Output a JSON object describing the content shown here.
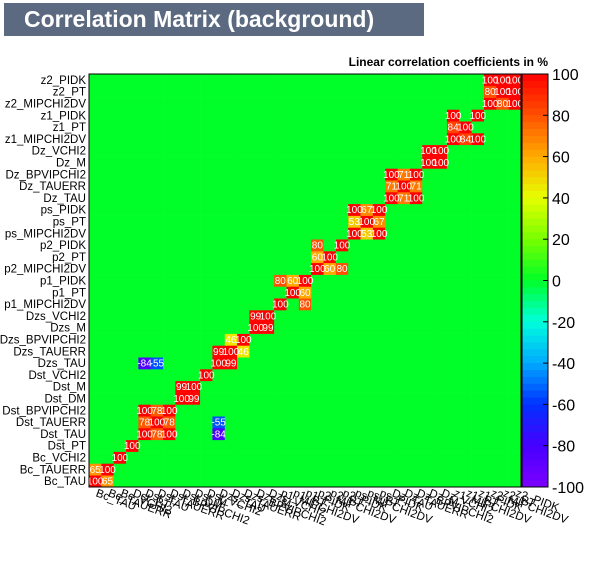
{
  "chart_data": {
    "type": "heatmap",
    "title": "Correlation Matrix (background)",
    "subtitle": "Linear correlation coefficients in %",
    "variables": [
      "Bc_TAU",
      "Bc_TAUERR",
      "Bc_VCHI2",
      "Dst_PT",
      "Dst_TAU",
      "Dst_TAUERR",
      "Dst_BPVIPCHI2",
      "Dst_DM",
      "Dst_M",
      "Dst_VCHI2",
      "Dzs_TAU",
      "Dzs_TAUERR",
      "Dzs_BPVIPCHI2",
      "Dzs_M",
      "Dzs_VCHI2",
      "p1_MIPCHI2DV",
      "p1_PT",
      "p1_PIDK",
      "p2_MIPCHI2DV",
      "p2_PT",
      "p2_PIDK",
      "ps_MIPCHI2DV",
      "ps_PT",
      "ps_PIDK",
      "Dz_TAU",
      "Dz_TAUERR",
      "Dz_BPVIPCHI2",
      "Dz_M",
      "Dz_VCHI2",
      "z1_MIPCHI2DV",
      "z1_PT",
      "z1_PIDK",
      "z2_MIPCHI2DV",
      "z2_PT",
      "z2_PIDK"
    ],
    "y_tick_labels": [
      "Bc_TAU",
      "Bc_TAUERR",
      "Bc_VCHI2",
      "Dst_PT",
      "Dst_TAU",
      "Dst_TAUERR",
      "Dst_BPVIPCHI2",
      "Dst_DM",
      "Dst_M",
      "Dst_VCHI2",
      "Dzs_TAU",
      "Dzs_TAUERR",
      "Dzs_BPVIPCHI2",
      "Dzs_M",
      "Dzs_VCHI2",
      "p1_MIPCHI2DV",
      "p1_PT",
      "p1_PIDK",
      "p2_MIPCHI2DV",
      "p2_PT",
      "p2_PIDK",
      "ps_MIPCHI2DV",
      "ps_PT",
      "ps_PIDK",
      "Dz_TAU",
      "Dz_TAUERR",
      "Dz_BPVIPCHI2",
      "Dz_M",
      "Dz_VCHI2",
      "z1_MIPCHI2DV",
      "z1_PT",
      "z1_PIDK",
      "z2_MIPCHI2DV",
      "z2_PT",
      "z2_PIDK"
    ],
    "x_tick_labels": [
      "Bc_TAU",
      "Bc_TAUERR",
      "Bc_VCHI2",
      "Dst_PT",
      "Dst_TAU",
      "Dst_TAUERR",
      "Dst_BPVIPCHI2",
      "Dst_DM",
      "Dst_M",
      "Dst_VCHI2",
      "Dzs_TAU",
      "Dzs_TAUERR",
      "Dzs_BPVIPCHI2",
      "Dzs_M",
      "Dzs_VCHI2",
      "p1_MIPCHI2DV",
      "p1_PT",
      "p1_PIDK",
      "p2_MIPCHI2DV",
      "p2_PT",
      "p2_PIDK",
      "ps_MIPCHI2DV",
      "ps_PT",
      "ps_PIDK",
      "Dz_TAU",
      "Dz_TAUERR",
      "Dz_BPVIPCHI2",
      "Dz_M",
      "Dz_VCHI2",
      "z1_MIPCHI2DV",
      "z1_PT",
      "z1_PIDK",
      "z2_MIPCHI2DV",
      "z2_PT",
      "z2_PIDK"
    ],
    "zlim": [
      -100,
      100
    ],
    "colorbar_ticks": [
      100,
      80,
      60,
      40,
      20,
      0,
      -20,
      -40,
      -60,
      -80,
      -100
    ],
    "strong_correlations": [
      {
        "row": "Bc_TAU",
        "col": "Bc_TAUERR",
        "value": 65
      },
      {
        "row": "Dst_TAU",
        "col": "Dst_TAUERR",
        "value": 78
      },
      {
        "row": "Dst_TAU",
        "col": "Dst_BPVIPCHI2",
        "value": 100
      },
      {
        "row": "Dst_TAU",
        "col": "Dzs_TAU",
        "value": -84
      },
      {
        "row": "Dst_TAUERR",
        "col": "Dst_BPVIPCHI2",
        "value": 78
      },
      {
        "row": "Dst_TAUERR",
        "col": "Dzs_TAU",
        "value": -55
      },
      {
        "row": "Dst_M",
        "col": "Dst_DM",
        "value": 99
      },
      {
        "row": "Dzs_TAU",
        "col": "Dzs_TAUERR",
        "value": 99
      },
      {
        "row": "Dzs_TAU",
        "col": "Dst_TAUERR",
        "value": -55
      },
      {
        "row": "Dzs_TAUERR",
        "col": "Dzs_BPVIPCHI2",
        "value": 46
      },
      {
        "row": "Dzs_M",
        "col": "Dzs_VCHI2",
        "value": 99
      },
      {
        "row": "p1_MIPCHI2DV",
        "col": "p1_PIDK",
        "value": 80
      },
      {
        "row": "p1_PT",
        "col": "p1_PIDK",
        "value": 60
      },
      {
        "row": "p2_MIPCHI2DV",
        "col": "p2_PT",
        "value": 60
      },
      {
        "row": "p2_MIPCHI2DV",
        "col": "p2_PIDK",
        "value": 80
      },
      {
        "row": "ps_MIPCHI2DV",
        "col": "ps_PT",
        "value": 53
      },
      {
        "row": "ps_MIPCHI2DV",
        "col": "ps_PIDK",
        "value": 100
      },
      {
        "row": "ps_PT",
        "col": "ps_PIDK",
        "value": 67
      },
      {
        "row": "Dz_TAU",
        "col": "Dz_TAUERR",
        "value": 71
      },
      {
        "row": "Dz_TAU",
        "col": "Dz_BPVIPCHI2",
        "value": 100
      },
      {
        "row": "Dz_TAUERR",
        "col": "Dz_BPVIPCHI2",
        "value": 71
      },
      {
        "row": "Dz_M",
        "col": "Dz_VCHI2",
        "value": 100
      },
      {
        "row": "z1_MIPCHI2DV",
        "col": "z1_PT",
        "value": 84
      },
      {
        "row": "z1_MIPCHI2DV",
        "col": "z1_PIDK",
        "value": 100
      },
      {
        "row": "z2_MIPCHI2DV",
        "col": "z2_PT",
        "value": 80
      },
      {
        "row": "z2_MIPCHI2DV",
        "col": "z2_PIDK",
        "value": 100
      },
      {
        "row": "z2_PT",
        "col": "z2_PIDK",
        "value": 100
      }
    ],
    "grid": true,
    "diagonal_value": 100
  }
}
